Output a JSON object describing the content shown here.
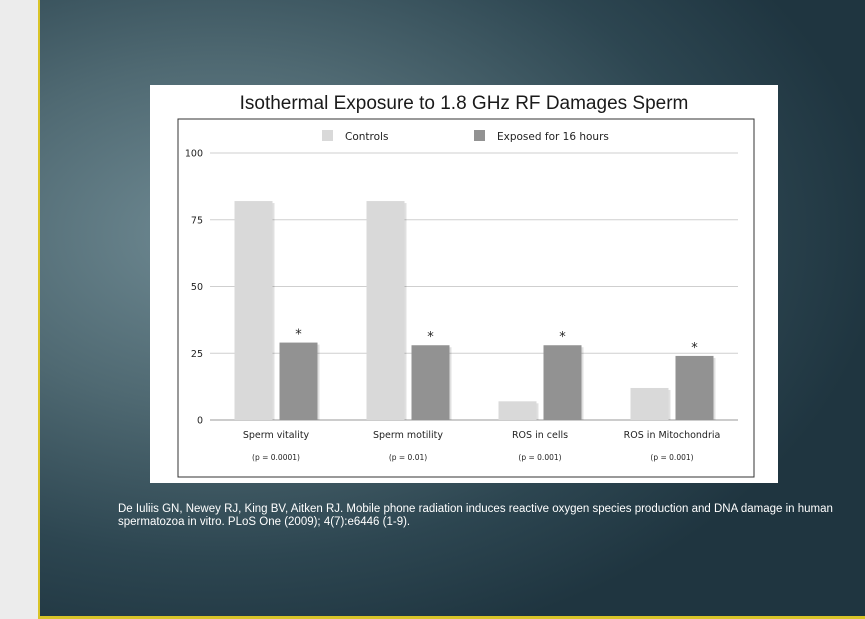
{
  "chart_data": {
    "type": "bar",
    "title": "Isothermal Exposure to 1.8 GHz RF Damages Sperm",
    "categories": [
      "Sperm vitality",
      "Sperm motility",
      "ROS in cells",
      "ROS in Mitochondria"
    ],
    "p_values": [
      "(p = 0.0001)",
      "(p = 0.01)",
      "(p = 0.001)",
      "(p = 0.001)"
    ],
    "series": [
      {
        "name": "Controls",
        "color": "#d9d9d9",
        "values": [
          82,
          82,
          7,
          12
        ]
      },
      {
        "name": "Exposed for 16 hours",
        "color": "#929292",
        "values": [
          29,
          28,
          28,
          24
        ]
      }
    ],
    "significance_marker": "*",
    "yticks": [
      0,
      25,
      50,
      75,
      100
    ],
    "ylim": [
      0,
      100
    ],
    "grid": true,
    "legend_position": "top-center",
    "xlabel": "",
    "ylabel": ""
  },
  "citation": {
    "text": "De Iuliis GN, Newey RJ, King BV, Aitken RJ. Mobile phone radiation induces reactive oxygen species production and DNA damage in human spermatozoa in vitro. PLoS One (2009); 4(7):e6446 (1-9)."
  },
  "theme": {
    "slide_accent": "#d9c428"
  }
}
